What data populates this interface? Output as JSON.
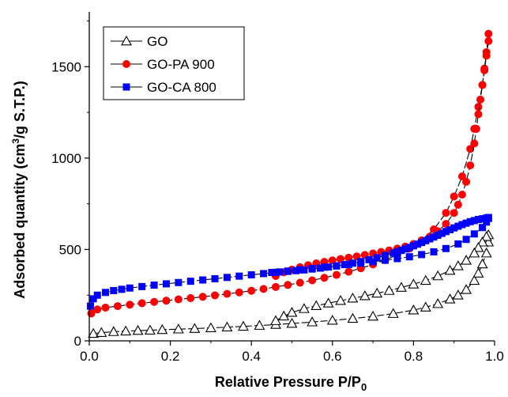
{
  "chart_data": {
    "type": "scatter",
    "xlabel": "Relative Pressure P/P",
    "xlabel_sub": "0",
    "ylabel_parts": [
      "Adsorbed quantity (cm",
      "3",
      "/g S.T.P.)"
    ],
    "xlim": [
      0.0,
      1.0
    ],
    "ylim": [
      0,
      1800
    ],
    "x_ticks": [
      0.0,
      0.2,
      0.4,
      0.6,
      0.8,
      1.0
    ],
    "x_tick_labels": [
      "0.0",
      "0.2",
      "0.4",
      "0.6",
      "0.8",
      "1.0"
    ],
    "y_ticks": [
      0,
      500,
      1000,
      1500
    ],
    "y_tick_labels": [
      "0",
      "500",
      "1000",
      "1500"
    ],
    "legend_position": "top-left",
    "series": [
      {
        "name": "GO",
        "marker": "open-triangle",
        "color": "#000000",
        "adsorption": {
          "x": [
            0.01,
            0.03,
            0.06,
            0.09,
            0.12,
            0.15,
            0.18,
            0.22,
            0.26,
            0.3,
            0.34,
            0.38,
            0.42,
            0.46,
            0.5,
            0.55,
            0.6,
            0.65,
            0.7,
            0.75,
            0.8,
            0.83,
            0.86,
            0.89,
            0.91,
            0.93,
            0.95,
            0.96,
            0.97,
            0.98,
            0.985
          ],
          "y": [
            40,
            45,
            50,
            53,
            56,
            58,
            61,
            64,
            67,
            71,
            75,
            79,
            84,
            89,
            95,
            103,
            112,
            122,
            134,
            149,
            168,
            184,
            203,
            228,
            250,
            280,
            330,
            370,
            420,
            480,
            540
          ]
        },
        "desorption": {
          "x": [
            0.985,
            0.98,
            0.97,
            0.96,
            0.95,
            0.93,
            0.91,
            0.89,
            0.86,
            0.83,
            0.8,
            0.77,
            0.74,
            0.71,
            0.68,
            0.65,
            0.62,
            0.59,
            0.56,
            0.53,
            0.5,
            0.48,
            0.46
          ],
          "y": [
            580,
            570,
            540,
            510,
            480,
            440,
            410,
            385,
            355,
            330,
            310,
            292,
            275,
            260,
            246,
            233,
            220,
            206,
            192,
            176,
            155,
            135,
            110
          ]
        }
      },
      {
        "name": "GO-PA 900",
        "marker": "filled-circle",
        "color": "#ff0000",
        "adsorption": {
          "x": [
            0.005,
            0.02,
            0.04,
            0.07,
            0.1,
            0.13,
            0.16,
            0.19,
            0.22,
            0.25,
            0.28,
            0.31,
            0.34,
            0.37,
            0.4,
            0.43,
            0.46,
            0.49,
            0.52,
            0.55,
            0.58,
            0.61,
            0.64,
            0.67,
            0.7,
            0.73,
            0.76,
            0.79,
            0.82,
            0.85,
            0.88,
            0.9,
            0.92,
            0.94,
            0.95,
            0.96,
            0.97,
            0.975,
            0.98,
            0.985
          ],
          "y": [
            150,
            172,
            182,
            190,
            198,
            206,
            213,
            220,
            227,
            234,
            241,
            249,
            257,
            265,
            274,
            284,
            295,
            306,
            318,
            331,
            345,
            361,
            378,
            397,
            418,
            442,
            470,
            505,
            550,
            610,
            700,
            790,
            900,
            1050,
            1160,
            1280,
            1400,
            1490,
            1580,
            1680
          ]
        },
        "desorption": {
          "x": [
            0.985,
            0.98,
            0.975,
            0.97,
            0.965,
            0.96,
            0.955,
            0.95,
            0.94,
            0.93,
            0.92,
            0.91,
            0.9,
            0.88,
            0.86,
            0.84,
            0.82,
            0.8,
            0.78,
            0.76,
            0.74,
            0.72,
            0.7,
            0.68,
            0.66,
            0.64,
            0.62,
            0.6,
            0.58,
            0.56,
            0.54,
            0.52,
            0.5,
            0.48,
            0.46
          ],
          "y": [
            1640,
            1560,
            1480,
            1400,
            1320,
            1240,
            1160,
            1080,
            960,
            870,
            800,
            745,
            700,
            640,
            600,
            570,
            548,
            530,
            516,
            505,
            495,
            486,
            478,
            470,
            462,
            455,
            448,
            440,
            432,
            424,
            414,
            403,
            390,
            375,
            355
          ]
        }
      },
      {
        "name": "GO-CA 800",
        "marker": "filled-square",
        "color": "#0000ff",
        "adsorption": {
          "x": [
            0.003,
            0.01,
            0.02,
            0.04,
            0.06,
            0.08,
            0.1,
            0.13,
            0.16,
            0.19,
            0.22,
            0.25,
            0.28,
            0.31,
            0.34,
            0.37,
            0.4,
            0.43,
            0.46,
            0.49,
            0.52,
            0.55,
            0.58,
            0.61,
            0.64,
            0.67,
            0.7,
            0.73,
            0.76,
            0.79,
            0.82,
            0.85,
            0.88,
            0.91,
            0.93,
            0.95,
            0.97,
            0.98,
            0.985
          ],
          "y": [
            190,
            230,
            250,
            265,
            275,
            282,
            289,
            297,
            305,
            312,
            319,
            326,
            333,
            340,
            347,
            354,
            361,
            368,
            375,
            382,
            389,
            396,
            403,
            410,
            418,
            425,
            433,
            441,
            450,
            460,
            472,
            487,
            505,
            530,
            555,
            585,
            620,
            650,
            670
          ]
        },
        "desorption": {
          "x": [
            0.985,
            0.98,
            0.97,
            0.96,
            0.95,
            0.94,
            0.93,
            0.92,
            0.91,
            0.9,
            0.89,
            0.88,
            0.87,
            0.86,
            0.85,
            0.84,
            0.83,
            0.82,
            0.81,
            0.8,
            0.79,
            0.78,
            0.77,
            0.76,
            0.75,
            0.73,
            0.71,
            0.69,
            0.67,
            0.65,
            0.63,
            0.61,
            0.59,
            0.57,
            0.55,
            0.53,
            0.51,
            0.49,
            0.47,
            0.45
          ],
          "y": [
            675,
            672,
            668,
            664,
            658,
            652,
            644,
            636,
            627,
            618,
            608,
            598,
            588,
            578,
            568,
            558,
            548,
            538,
            529,
            520,
            511,
            503,
            495,
            487,
            480,
            467,
            455,
            444,
            434,
            425,
            417,
            410,
            404,
            398,
            393,
            388,
            384,
            380,
            377,
            374
          ]
        }
      }
    ]
  }
}
